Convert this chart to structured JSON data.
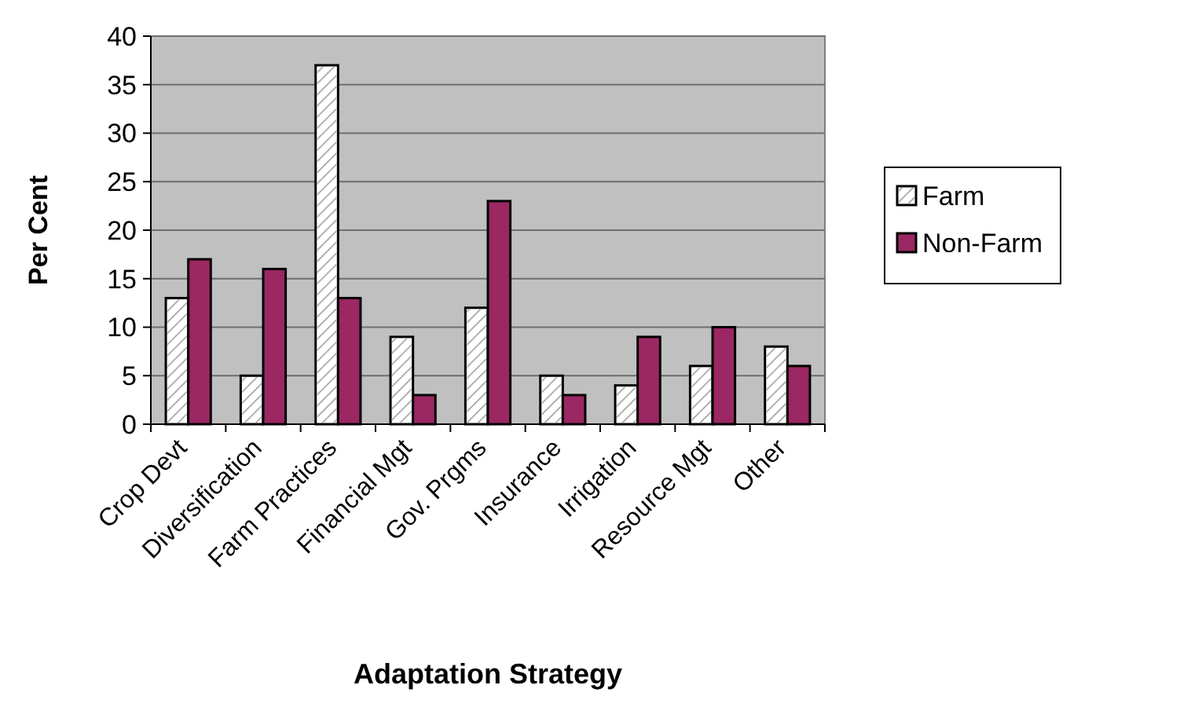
{
  "chart_data": {
    "type": "bar",
    "xlabel": "Adaptation Strategy",
    "ylabel": "Per Cent",
    "categories": [
      "Crop Devt",
      "Diversification",
      "Farm Practices",
      "Financial Mgt",
      "Gov. Prgms",
      "Insurance",
      "Irrigation",
      "Resource Mgt",
      "Other"
    ],
    "series": [
      {
        "name": "Farm",
        "color": "#ffffff",
        "values": [
          13,
          5,
          37,
          9,
          12,
          5,
          4,
          6,
          8
        ]
      },
      {
        "name": "Non-Farm",
        "color": "#9b2763",
        "values": [
          17,
          16,
          13,
          3,
          23,
          3,
          9,
          10,
          6
        ]
      }
    ],
    "ylim": [
      0,
      40
    ],
    "yticks": [
      0,
      5,
      10,
      15,
      20,
      25,
      30,
      35,
      40
    ],
    "grid": "y",
    "legend": "right"
  }
}
